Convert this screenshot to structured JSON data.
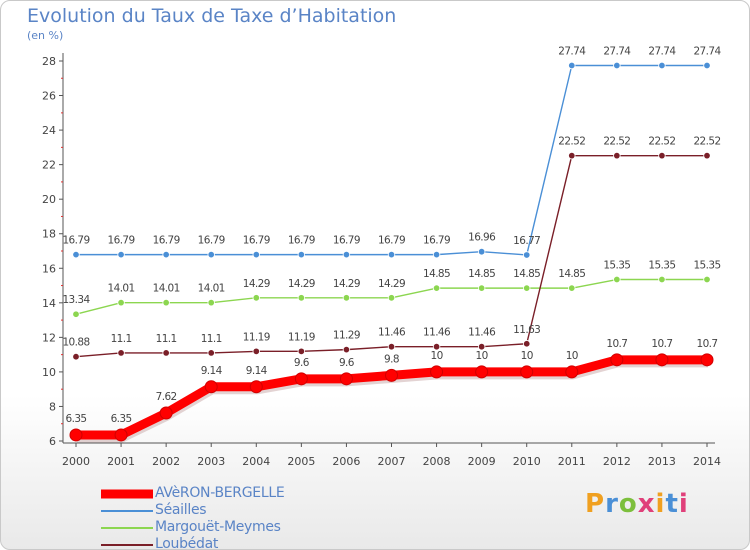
{
  "title": "Evolution du Taux de Taxe d’Habitation",
  "subtitle": "(en %)",
  "logo_text": "Proxiti",
  "logo_colors": [
    "#f0a020",
    "#4a8fd6",
    "#7cbf3c",
    "#e0407a",
    "#f0a020",
    "#4a8fd6",
    "#e0407a"
  ],
  "chart_data": {
    "type": "line",
    "x": [
      2000,
      2001,
      2002,
      2003,
      2004,
      2005,
      2006,
      2007,
      2008,
      2009,
      2010,
      2011,
      2012,
      2013,
      2014
    ],
    "ylim": [
      6,
      28
    ],
    "yticks": [
      6,
      8,
      10,
      12,
      14,
      16,
      18,
      20,
      22,
      24,
      26,
      28
    ],
    "grid": false,
    "legend_placement": "bottom-left",
    "series": [
      {
        "name": "AVèRON-BERGELLE",
        "color": "#ff0000",
        "values": [
          6.35,
          6.35,
          7.62,
          9.14,
          9.14,
          9.6,
          9.6,
          9.8,
          10,
          10,
          10,
          10,
          10.7,
          10.7,
          10.7
        ],
        "labels": [
          "6.35",
          "6.35",
          "7.62",
          "9.14",
          "9.14",
          "9.6",
          "9.6",
          "9.8",
          "10",
          "10",
          "10",
          "10",
          "10.7",
          "10.7",
          "10.7"
        ]
      },
      {
        "name": "Séailles",
        "color": "#4a8fd6",
        "values": [
          16.79,
          16.79,
          16.79,
          16.79,
          16.79,
          16.79,
          16.79,
          16.79,
          16.79,
          16.96,
          16.77,
          27.74,
          27.74,
          27.74,
          27.74
        ],
        "labels": [
          "16.79",
          "16.79",
          "16.79",
          "16.79",
          "16.79",
          "16.79",
          "16.79",
          "16.79",
          "16.79",
          "16.96",
          "16.77",
          "27.74",
          "27.74",
          "27.74",
          "27.74"
        ]
      },
      {
        "name": "Margouët-Meymes",
        "color": "#8cd650",
        "values": [
          13.34,
          14.01,
          14.01,
          14.01,
          14.29,
          14.29,
          14.29,
          14.29,
          14.85,
          14.85,
          14.85,
          14.85,
          15.35,
          15.35,
          15.35
        ],
        "labels": [
          "13.34",
          "14.01",
          "14.01",
          "14.01",
          "14.29",
          "14.29",
          "14.29",
          "14.29",
          "14.85",
          "14.85",
          "14.85",
          "14.85",
          "15.35",
          "15.35",
          "15.35"
        ]
      },
      {
        "name": "Loubédat",
        "color": "#7a1f28",
        "values": [
          10.88,
          11.1,
          11.1,
          11.1,
          11.19,
          11.19,
          11.29,
          11.46,
          11.46,
          11.46,
          11.63,
          22.52,
          22.52,
          22.52,
          22.52
        ],
        "labels": [
          "10.88",
          "11.1",
          "11.1",
          "11.1",
          "11.19",
          "11.19",
          "11.29",
          "11.46",
          "11.46",
          "11.46",
          "11.63",
          "22.52",
          "22.52",
          "22.52",
          "22.52"
        ]
      }
    ]
  }
}
